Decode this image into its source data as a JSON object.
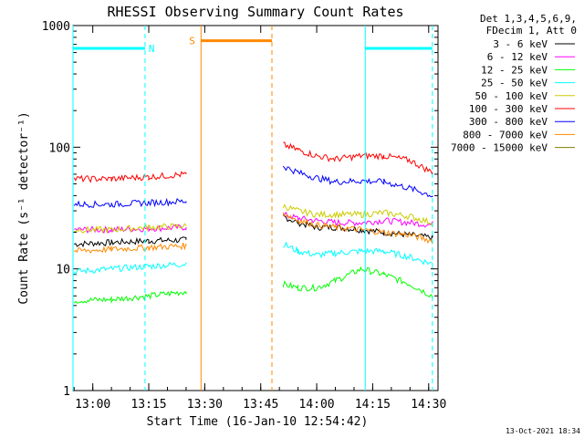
{
  "chart_data": {
    "type": "line",
    "title": "RHESSI Observing Summary Count Rates",
    "xlabel": "Start Time (16-Jan-10 12:54:42)",
    "ylabel": "Count Rate (s⁻¹ detector⁻¹)",
    "yscale": "log",
    "ylim": [
      1,
      1000
    ],
    "xlim": [
      "12:54:42",
      "14:32:30"
    ],
    "x_ticks": [
      "13:00",
      "13:15",
      "13:30",
      "13:45",
      "14:00",
      "14:15",
      "14:30"
    ],
    "y_ticks": [
      "1",
      "10",
      "100",
      "1000"
    ],
    "footer": "13-Oct-2021 18:34",
    "legend_header": [
      "Det 1,3,4,5,6,9,",
      "FDecim 1, Att 0"
    ],
    "legend_position": "right",
    "gap": {
      "start": "13:29",
      "end": "13:51"
    },
    "series": [
      {
        "name": "3 - 6 keV",
        "color": "#000000",
        "values_before": [
          16,
          16.5,
          17,
          17.3
        ],
        "values_after": [
          27,
          24,
          22,
          22,
          21,
          20,
          19,
          18
        ]
      },
      {
        "name": "6 - 12 keV",
        "color": "#ff00ff",
        "values_before": [
          21,
          21,
          21.5,
          22
        ],
        "values_after": [
          28,
          26,
          25,
          24,
          24,
          25,
          24,
          23
        ]
      },
      {
        "name": "12 - 25 keV",
        "color": "#00ff00",
        "values_before": [
          5.5,
          5.6,
          6,
          6.5
        ],
        "values_after": [
          7.5,
          7,
          7,
          8,
          10,
          9,
          7.5,
          6
        ]
      },
      {
        "name": "25 - 50 keV",
        "color": "#00ffff",
        "values_before": [
          9.5,
          10,
          10.5,
          11
        ],
        "values_after": [
          16,
          14,
          13,
          13.5,
          14,
          14,
          12.5,
          11
        ]
      },
      {
        "name": "50 - 100 keV",
        "color": "#cccc00",
        "values_before": [
          21,
          21,
          22,
          22.5
        ],
        "values_after": [
          33,
          30,
          28,
          28,
          28,
          29,
          27,
          24
        ]
      },
      {
        "name": "100 - 300 keV",
        "color": "#ff0000",
        "values_before": [
          55,
          55,
          57,
          60
        ],
        "values_after": [
          105,
          95,
          85,
          80,
          85,
          85,
          78,
          62
        ]
      },
      {
        "name": "300 - 800 keV",
        "color": "#0000ff",
        "values_before": [
          34,
          34,
          35,
          36
        ],
        "values_after": [
          70,
          62,
          56,
          52,
          53,
          52,
          46,
          40
        ]
      },
      {
        "name": "800 - 7000 keV",
        "color": "#ff8800",
        "values_before": [
          14,
          14.5,
          15,
          15.5
        ],
        "values_after": [
          29,
          25,
          23,
          22,
          21,
          20,
          19,
          17
        ]
      },
      {
        "name": "7000 - 15000 keV",
        "color": "#808000",
        "values_before": [],
        "values_after": []
      }
    ],
    "x_before": [
      "12:55",
      "13:05",
      "13:15",
      "13:25"
    ],
    "x_after": [
      "13:51",
      "13:55",
      "14:00",
      "14:05",
      "14:12",
      "14:18",
      "14:25",
      "14:31"
    ],
    "flags": [
      {
        "label": "N",
        "color": "#00ffff",
        "level": 650,
        "segments": [
          [
            "12:54:42",
            "13:14"
          ],
          [
            "14:13",
            "14:31"
          ]
        ]
      },
      {
        "label": "S",
        "color": "#ff8800",
        "level": 750,
        "segments": [
          [
            "13:29",
            "13:48"
          ]
        ]
      }
    ]
  }
}
